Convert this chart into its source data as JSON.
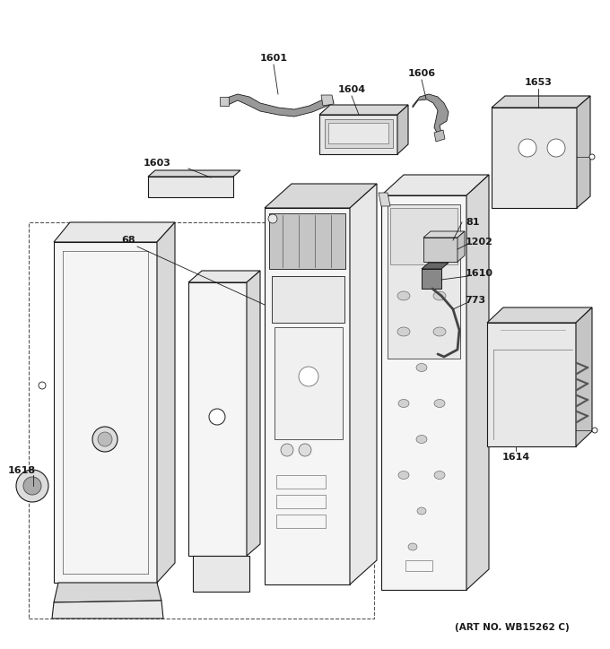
{
  "art_no": "(ART NO. WB15262 C)",
  "bg_color": "#ffffff",
  "fig_width": 6.8,
  "fig_height": 7.24,
  "dpi": 100
}
